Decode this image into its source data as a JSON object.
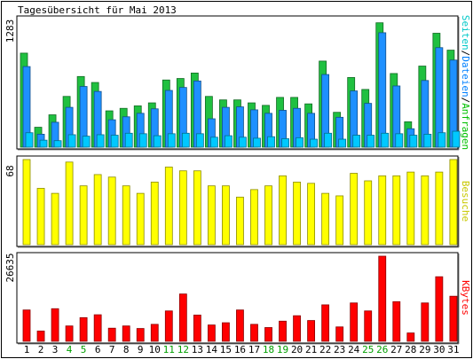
{
  "chart_data": {
    "type": "bar",
    "title": "Tagesübersicht für Mai 2013",
    "days": [
      "1",
      "2",
      "3",
      "4",
      "5",
      "6",
      "7",
      "8",
      "9",
      "10",
      "11",
      "12",
      "13",
      "14",
      "15",
      "16",
      "17",
      "18",
      "19",
      "20",
      "21",
      "22",
      "23",
      "24",
      "25",
      "26",
      "27",
      "28",
      "29",
      "30",
      "31"
    ],
    "weekend_days": [
      "4",
      "5",
      "11",
      "12",
      "18",
      "19",
      "25",
      "26"
    ],
    "panels": [
      {
        "id": "hits",
        "ymax_label": "1283",
        "ymax": 1283,
        "legend": [
          {
            "text": "Seiten",
            "color": "#00c8c8"
          },
          {
            "text": "/",
            "color": "#000000"
          },
          {
            "text": "Dateien",
            "color": "#0080ff"
          },
          {
            "text": "/",
            "color": "#000000"
          },
          {
            "text": "Anfragen",
            "color": "#00c000"
          }
        ],
        "series": [
          {
            "name": "Anfragen",
            "color": "#20c040",
            "values": [
              945,
              200,
              325,
              510,
              710,
              650,
              365,
              390,
              415,
              445,
              675,
              690,
              745,
              510,
              475,
              475,
              445,
              420,
              500,
              500,
              435,
              865,
              350,
              700,
              580,
              1250,
              740,
              255,
              815,
              1145,
              975
            ]
          },
          {
            "name": "Dateien",
            "color": "#1e90ff",
            "values": [
              810,
              130,
              250,
              400,
              610,
              560,
              275,
              305,
              340,
              385,
              570,
              600,
              665,
              285,
              400,
              405,
              375,
              340,
              370,
              390,
              340,
              730,
              300,
              565,
              440,
              1150,
              615,
              185,
              670,
              1000,
              875
            ]
          },
          {
            "name": "Seiten",
            "color": "#00c8ff",
            "values": [
              145,
              70,
              65,
              125,
              110,
              125,
              120,
              140,
              135,
              115,
              135,
              140,
              135,
              100,
              115,
              100,
              90,
              105,
              85,
              95,
              80,
              140,
              80,
              120,
              120,
              140,
              135,
              120,
              130,
              145,
              160
            ]
          }
        ]
      },
      {
        "id": "visits",
        "ymax_label": "68",
        "ymax": 68,
        "legend": [
          {
            "text": "Besuche",
            "color": "#c8c800"
          }
        ],
        "series": [
          {
            "name": "Besuche",
            "color": "#ffff00",
            "values": [
              68,
              45,
              41,
              66,
              47,
              56,
              54,
              47,
              41,
              50,
              62,
              59,
              59,
              47,
              47,
              38,
              44,
              47,
              55,
              50,
              49,
              41,
              39,
              57,
              51,
              55,
              55,
              58,
              55,
              58,
              68
            ]
          }
        ]
      },
      {
        "id": "kbytes",
        "ymax_label": "26635",
        "ymax": 26635,
        "legend": [
          {
            "text": "KBytes",
            "color": "#ff0000"
          }
        ],
        "series": [
          {
            "name": "KBytes",
            "color": "#ff0000",
            "values": [
              9800,
              3200,
              10200,
              4800,
              7400,
              8300,
              4100,
              4800,
              4000,
              5300,
              9500,
              14800,
              8200,
              5100,
              5800,
              9800,
              5300,
              4300,
              6300,
              8000,
              6500,
              11400,
              4500,
              12000,
              9500,
              26635,
              12400,
              2600,
              12000,
              20200,
              14100
            ]
          }
        ]
      }
    ],
    "grid": false,
    "legend_position": "right-vertical"
  }
}
